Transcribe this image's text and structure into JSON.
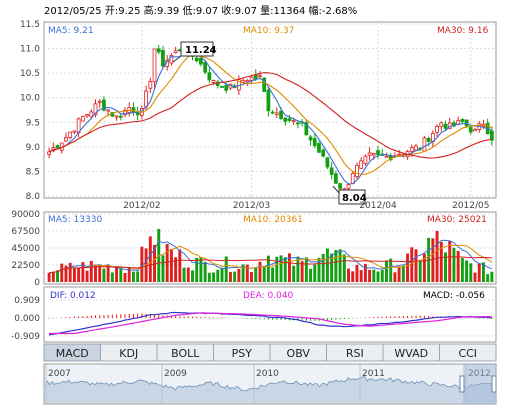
{
  "header": {
    "date": "2012/05/25",
    "open_label": "开:",
    "open": "9.25",
    "high_label": "高:",
    "high": "9.39",
    "low_label": "低:",
    "low": "9.07",
    "close_label": "收:",
    "close": "9.07",
    "vol_label": "量:",
    "vol": "11364",
    "chg_label": "幅:",
    "chg": "-2.68%"
  },
  "price_panel": {
    "ma5": "MA5: 9.21",
    "ma10": "MA10: 9.37",
    "ma30": "MA30: 9.16",
    "high_marker": "11.24",
    "low_marker": "8.04"
  },
  "volume_panel": {
    "ma5": "MA5: 13330",
    "ma10": "MA10: 20361",
    "ma30": "MA30: 25021"
  },
  "macd_panel": {
    "dif": "DIF: 0.012",
    "dea": "DEA: 0.040",
    "macd": "MACD: -0.056"
  },
  "tabs": [
    "MACD",
    "KDJ",
    "BOLL",
    "PSY",
    "OBV",
    "RSI",
    "WVAD",
    "CCI"
  ],
  "active_tab": "MACD",
  "colors": {
    "up": "#e02020",
    "down": "#12a012",
    "ma5": "#3a6fd8",
    "ma10": "#e08a00",
    "ma30": "#d02020",
    "dif": "#3333cc",
    "dea": "#dd22dd"
  },
  "chart_data": {
    "type": "candlestick",
    "x_ticks": [
      "2012/02",
      "2012/03",
      "2012/04",
      "2012/05"
    ],
    "price_axis": {
      "ylim": [
        8.0,
        11.5
      ],
      "ticks": [
        "8.0",
        "8.5",
        "9.0",
        "9.5",
        "10.0",
        "10.5",
        "11.0",
        "11.5"
      ]
    },
    "volume_axis": {
      "ylim": [
        0,
        90000
      ],
      "ticks": [
        "0",
        "22500",
        "45000",
        "67500",
        "90000"
      ]
    },
    "macd_axis": {
      "ticks": [
        "0.909",
        "0.000",
        "-0.909"
      ]
    },
    "overview_axis": {
      "ticks": [
        "2007",
        "2009",
        "2010",
        "2011",
        "2012"
      ]
    },
    "price_keypoints": [
      [
        0,
        8.9
      ],
      [
        4,
        9.2
      ],
      [
        8,
        9.6
      ],
      [
        12,
        9.9
      ],
      [
        16,
        9.6
      ],
      [
        19,
        9.8
      ],
      [
        22,
        9.7
      ],
      [
        24,
        10.4
      ],
      [
        25,
        11.0
      ],
      [
        27,
        10.7
      ],
      [
        31,
        11.0
      ],
      [
        35,
        10.8
      ],
      [
        39,
        10.3
      ],
      [
        43,
        10.2
      ],
      [
        47,
        10.4
      ],
      [
        50,
        10.4
      ],
      [
        52,
        9.8
      ],
      [
        56,
        9.6
      ],
      [
        60,
        9.4
      ],
      [
        64,
        8.9
      ],
      [
        68,
        8.3
      ],
      [
        70,
        8.1
      ],
      [
        72,
        8.5
      ],
      [
        76,
        8.8
      ],
      [
        80,
        8.8
      ],
      [
        84,
        8.9
      ],
      [
        88,
        9.0
      ],
      [
        91,
        9.3
      ],
      [
        93,
        9.5
      ],
      [
        95,
        9.4
      ],
      [
        98,
        9.5
      ],
      [
        101,
        9.3
      ],
      [
        103,
        9.5
      ],
      [
        105,
        9.2
      ]
    ],
    "volume_keypoints": [
      [
        0,
        16000
      ],
      [
        10,
        22000
      ],
      [
        20,
        18000
      ],
      [
        23,
        40000
      ],
      [
        24,
        78000
      ],
      [
        26,
        50000
      ],
      [
        28,
        42000
      ],
      [
        32,
        30000
      ],
      [
        38,
        22000
      ],
      [
        44,
        24000
      ],
      [
        48,
        20000
      ],
      [
        52,
        35000
      ],
      [
        56,
        28000
      ],
      [
        60,
        24000
      ],
      [
        64,
        38000
      ],
      [
        68,
        34000
      ],
      [
        72,
        20000
      ],
      [
        78,
        18000
      ],
      [
        84,
        26000
      ],
      [
        88,
        38000
      ],
      [
        91,
        55000
      ],
      [
        94,
        48000
      ],
      [
        98,
        26000
      ],
      [
        103,
        18000
      ],
      [
        105,
        14000
      ]
    ],
    "macd_keypoints": [
      [
        0,
        -0.85
      ],
      [
        10,
        -0.45
      ],
      [
        24,
        0.15
      ],
      [
        30,
        0.28
      ],
      [
        40,
        0.22
      ],
      [
        50,
        0.1
      ],
      [
        58,
        -0.05
      ],
      [
        64,
        -0.35
      ],
      [
        70,
        -0.45
      ],
      [
        78,
        -0.3
      ],
      [
        86,
        -0.15
      ],
      [
        92,
        0.05
      ],
      [
        98,
        0.08
      ],
      [
        105,
        0.01
      ]
    ],
    "macd_hist_keypoints": [
      [
        0,
        -0.05
      ],
      [
        10,
        0.25
      ],
      [
        22,
        0.45
      ],
      [
        30,
        0.2
      ],
      [
        40,
        0.05
      ],
      [
        50,
        -0.12
      ],
      [
        58,
        -0.25
      ],
      [
        64,
        -0.3
      ],
      [
        70,
        -0.1
      ],
      [
        78,
        0.12
      ],
      [
        88,
        0.25
      ],
      [
        94,
        0.1
      ],
      [
        100,
        -0.05
      ],
      [
        105,
        -0.06
      ]
    ],
    "overview_keypoints": [
      [
        0,
        0.55
      ],
      [
        12,
        0.6
      ],
      [
        25,
        0.5
      ],
      [
        40,
        0.62
      ],
      [
        55,
        0.4
      ],
      [
        70,
        0.55
      ],
      [
        85,
        0.35
      ],
      [
        100,
        0.62
      ],
      [
        115,
        0.48
      ],
      [
        130,
        0.7
      ],
      [
        145,
        0.66
      ],
      [
        160,
        0.55
      ],
      [
        175,
        0.45
      ],
      [
        190,
        0.52
      ]
    ]
  }
}
